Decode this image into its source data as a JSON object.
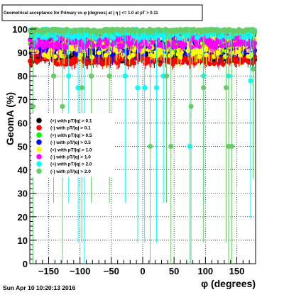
{
  "title": "Geometrical acceptance for Primary vs φ (degrees) at | η | <= 1.0 at pT > 0.11",
  "footer": "Sun Apr 10 10:20:13 2016",
  "chart_data": {
    "type": "scatter",
    "title": "Geometrical acceptance for Primary vs φ (degrees) at | η | <= 1.0 at pT > 0.11",
    "xlabel": "φ (degrees)",
    "ylabel": "GeomA (%)",
    "xlim": [
      -180,
      180
    ],
    "ylim": [
      0,
      100
    ],
    "xticks": [
      -150,
      -100,
      -50,
      0,
      50,
      100,
      150
    ],
    "yticks": [
      0,
      10,
      20,
      30,
      40,
      50,
      60,
      70,
      80,
      90,
      100
    ],
    "grid": true,
    "legend_position": "center-left",
    "series": [
      {
        "name": "(+) with pT/|q| > 0.1",
        "color": "#000000",
        "band": [
          86,
          90
        ],
        "spread": 3,
        "outliers": []
      },
      {
        "name": "(-) with pT/|q| > 0.1",
        "color": "#ff0000",
        "band": [
          85,
          89
        ],
        "spread": 3,
        "outliers": []
      },
      {
        "name": "(+) with pT/|q| > 0.5",
        "color": "#00ff00",
        "band": [
          91,
          99
        ],
        "spread": 5,
        "outliers": []
      },
      {
        "name": "(-) with pT/|q| > 0.5",
        "color": "#0000ff",
        "band": [
          89,
          96
        ],
        "spread": 5,
        "outliers": []
      },
      {
        "name": "(+) with pT/|q| > 1.0",
        "color": "#ffff00",
        "band": [
          88,
          97
        ],
        "spread": 6,
        "outliers": []
      },
      {
        "name": "(-) with pT/|q| > 1.0",
        "color": "#ff00ff",
        "band": [
          92,
          98
        ],
        "spread": 5,
        "outliers": []
      },
      {
        "name": "(+) with pT/|q| > 2.0",
        "color": "#00ffff",
        "band": [
          96,
          100
        ],
        "spread": 4,
        "outliers": [
          [
            -118,
            80
          ],
          [
            -103,
            75
          ],
          [
            -93,
            50
          ],
          [
            -28,
            80
          ],
          [
            -8,
            75
          ],
          [
            3,
            75
          ],
          [
            22,
            75
          ],
          [
            33,
            80
          ],
          [
            75,
            50
          ],
          [
            97,
            80
          ],
          [
            137,
            80
          ],
          [
            172,
            78
          ]
        ]
      },
      {
        "name": "(-) with pT/|q| > 2.0",
        "color": "#66cc66",
        "band": [
          99,
          100
        ],
        "spread": 3,
        "outliers": [
          [
            -175,
            67
          ],
          [
            -142,
            80
          ],
          [
            -128,
            67
          ],
          [
            -97,
            75
          ],
          [
            -82,
            80
          ],
          [
            -53,
            80
          ],
          [
            12,
            50
          ],
          [
            38,
            80
          ],
          [
            45,
            50
          ],
          [
            77,
            67
          ],
          [
            97,
            75
          ],
          [
            133,
            75
          ],
          [
            137,
            50
          ],
          [
            142,
            50
          ],
          [
            176,
            83
          ]
        ]
      }
    ]
  }
}
